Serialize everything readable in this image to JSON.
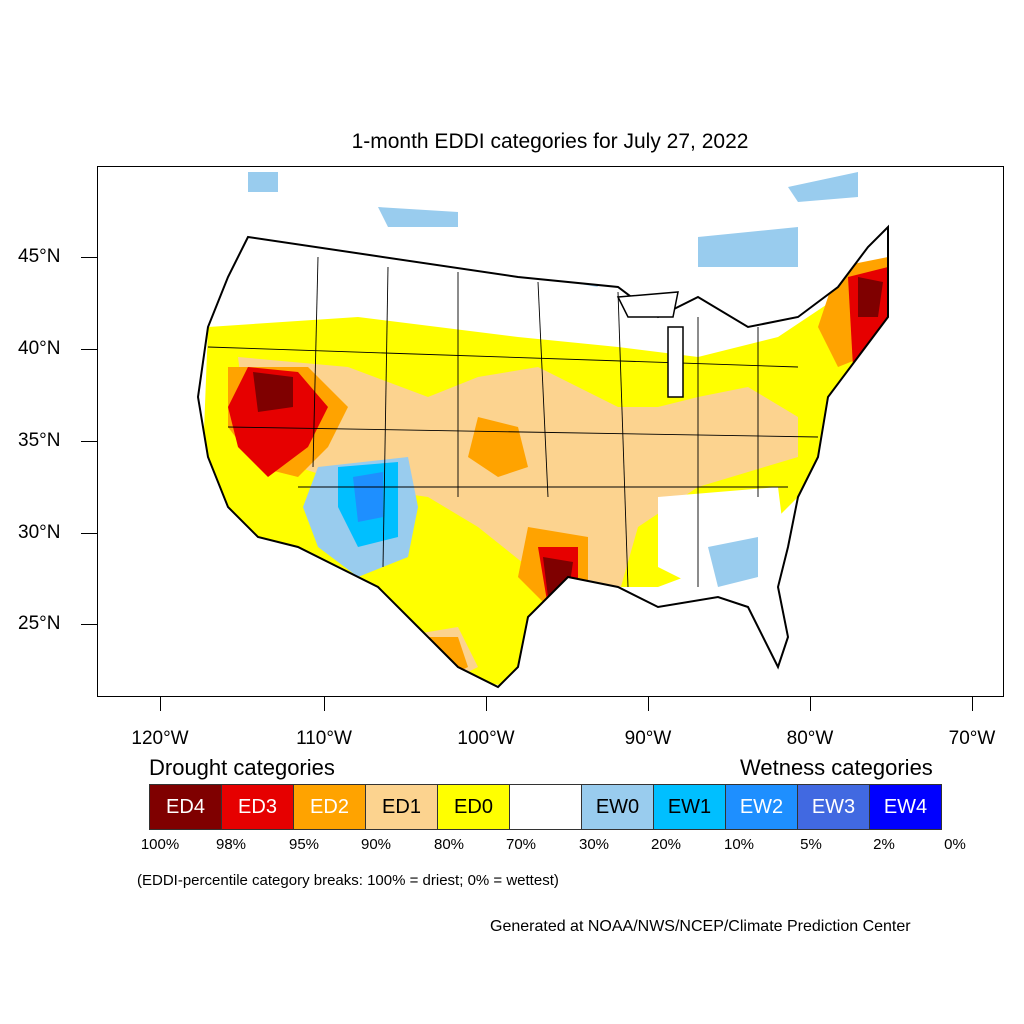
{
  "title": "1-month EDDI categories for July 27, 2022",
  "axes": {
    "lat_labels": [
      "45°N",
      "40°N",
      "35°N",
      "30°N",
      "25°N"
    ],
    "lon_labels": [
      "120°W",
      "110°W",
      "100°W",
      "90°W",
      "80°W",
      "70°W"
    ]
  },
  "legend": {
    "drought_heading": "Drought categories",
    "wetness_heading": "Wetness categories",
    "categories": [
      {
        "label": "ED4",
        "color": "#7f0000",
        "text_color": "#ffffff"
      },
      {
        "label": "ED3",
        "color": "#e60000",
        "text_color": "#ffffff"
      },
      {
        "label": "ED2",
        "color": "#ffa300",
        "text_color": "#ffffff"
      },
      {
        "label": "ED1",
        "color": "#fcd38f",
        "text_color": "#000000"
      },
      {
        "label": "ED0",
        "color": "#ffff00",
        "text_color": "#000000"
      },
      {
        "label": "",
        "color": "#ffffff",
        "text_color": "#000000"
      },
      {
        "label": "EW0",
        "color": "#99ccee",
        "text_color": "#000000"
      },
      {
        "label": "EW1",
        "color": "#00bfff",
        "text_color": "#000000"
      },
      {
        "label": "EW2",
        "color": "#1e8fff",
        "text_color": "#ffffff"
      },
      {
        "label": "EW3",
        "color": "#4169e1",
        "text_color": "#ffffff"
      },
      {
        "label": "EW4",
        "color": "#0000ff",
        "text_color": "#ffffff"
      }
    ],
    "breaks": [
      "100%",
      "98%",
      "95%",
      "90%",
      "80%",
      "70%",
      "30%",
      "20%",
      "10%",
      "5%",
      "2%",
      "0%"
    ]
  },
  "note": "(EDDI-percentile category breaks: 100% = driest; 0% = wettest)",
  "credit": "Generated at NOAA/NWS/NCEP/Climate Prediction Center"
}
